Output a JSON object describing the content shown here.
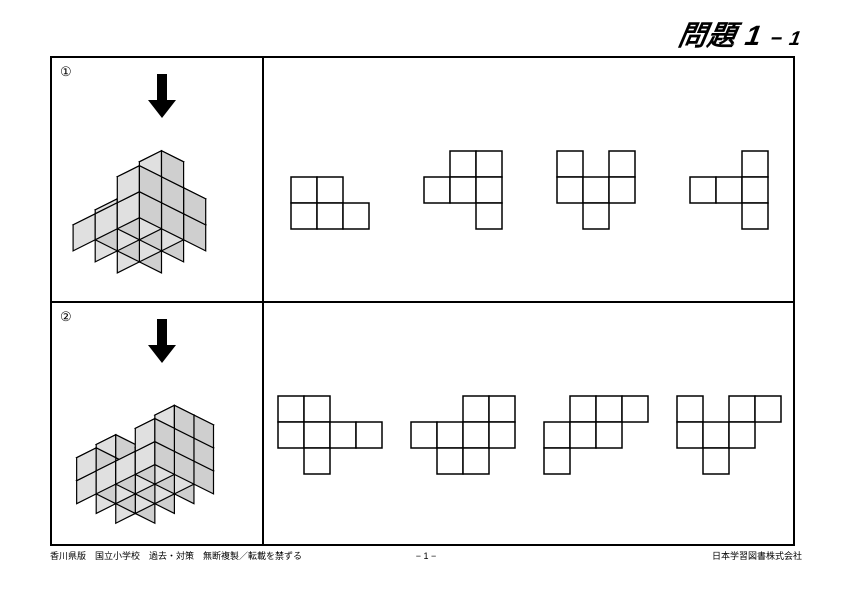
{
  "title_main": "問題 1",
  "title_sub": "− 1",
  "q1_number": "①",
  "q2_number": "②",
  "page_number": "− 1 −",
  "footer_left": "香川県版　国立小学校　過去・対策　無断複製／転載を禁ずる",
  "footer_right": "日本学習図書株式会社",
  "style": {
    "cell_size": 26,
    "stroke": "#000000",
    "stroke_width": 1.5,
    "cube_fill": "#e0e0e0",
    "cube_top": "#f2f2f2",
    "cube_side": "#cfcfcf"
  },
  "q1": {
    "cubes_grid": {
      "cols": 3,
      "rows": 3,
      "heights": [
        [
          1,
          1,
          2
        ],
        [
          2,
          2,
          3
        ],
        [
          1,
          1,
          2
        ]
      ]
    },
    "options": [
      [
        [
          0,
          0,
          0
        ],
        [
          1,
          1,
          0
        ],
        [
          1,
          1,
          1
        ]
      ],
      [
        [
          0,
          1,
          1
        ],
        [
          1,
          1,
          1
        ],
        [
          0,
          0,
          1
        ]
      ],
      [
        [
          1,
          0,
          1
        ],
        [
          1,
          1,
          1
        ],
        [
          0,
          1,
          0
        ]
      ],
      [
        [
          0,
          0,
          1
        ],
        [
          1,
          1,
          1
        ],
        [
          0,
          0,
          1
        ]
      ]
    ]
  },
  "q2": {
    "cubes_grid": {
      "cols": 4,
      "rows": 3,
      "heights": [
        [
          2,
          1,
          1,
          3
        ],
        [
          3,
          1,
          2,
          3
        ],
        [
          2,
          1,
          1,
          2
        ]
      ]
    },
    "options": [
      [
        [
          1,
          1,
          0,
          0
        ],
        [
          1,
          1,
          1,
          1
        ],
        [
          0,
          1,
          0,
          0
        ]
      ],
      [
        [
          0,
          0,
          1,
          1
        ],
        [
          1,
          1,
          1,
          1
        ],
        [
          0,
          1,
          1,
          0
        ]
      ],
      [
        [
          0,
          1,
          1,
          1
        ],
        [
          1,
          1,
          1,
          0
        ],
        [
          1,
          0,
          0,
          0
        ]
      ],
      [
        [
          1,
          0,
          1,
          1
        ],
        [
          1,
          1,
          1,
          0
        ],
        [
          0,
          1,
          0,
          0
        ]
      ]
    ]
  }
}
